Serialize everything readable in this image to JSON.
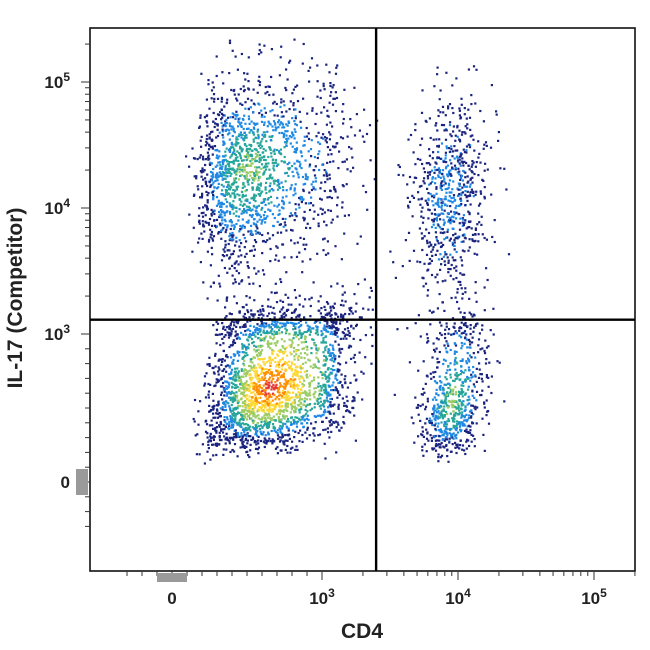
{
  "chart_data": {
    "type": "scatter",
    "subtype": "flow-cytometry-density-dot-plot",
    "xlabel": "CD4",
    "ylabel": "IL-17 (Competitor)",
    "x_scale": "biexponential",
    "y_scale": "biexponential",
    "x_ticks": [
      {
        "value": 0,
        "label": "0"
      },
      {
        "value": 1000,
        "label": "10",
        "exp": "3"
      },
      {
        "value": 10000,
        "label": "10",
        "exp": "4"
      },
      {
        "value": 100000,
        "label": "10",
        "exp": "5"
      }
    ],
    "y_ticks": [
      {
        "value": 0,
        "label": "0"
      },
      {
        "value": 1000,
        "label": "10",
        "exp": "3"
      },
      {
        "value": 10000,
        "label": "10",
        "exp": "4"
      },
      {
        "value": 100000,
        "label": "10",
        "exp": "5"
      }
    ],
    "xlim": [
      -400,
      250000
    ],
    "ylim": [
      -400,
      250000
    ],
    "quadrant_gates": {
      "x": 2500,
      "y": 1300
    },
    "density_colors": [
      "#1a237e",
      "#1e88e5",
      "#26a69a",
      "#9ccc65",
      "#fdd835",
      "#ff8f00",
      "#e53935"
    ],
    "populations": [
      {
        "name_hint": "CD4-low IL-17-high",
        "x_center": 500,
        "y_center": 20000,
        "x_spread": 0.22,
        "y_spread": 0.38,
        "count": 1600,
        "peak_level": 3
      },
      {
        "name_hint": "CD4-low IL-17-low",
        "x_center": 650,
        "y_center": 650,
        "x_spread": 0.2,
        "y_spread": 0.2,
        "count": 2300,
        "peak_level": 6
      },
      {
        "name_hint": "CD4-high IL-17-high",
        "x_center": 8500,
        "y_center": 13000,
        "x_spread": 0.14,
        "y_spread": 0.4,
        "count": 700,
        "peak_level": 1
      },
      {
        "name_hint": "CD4-high IL-17-low",
        "x_center": 9000,
        "y_center": 550,
        "x_spread": 0.12,
        "y_spread": 0.2,
        "count": 700,
        "peak_level": 3
      }
    ],
    "grid": false,
    "legend": "none"
  }
}
